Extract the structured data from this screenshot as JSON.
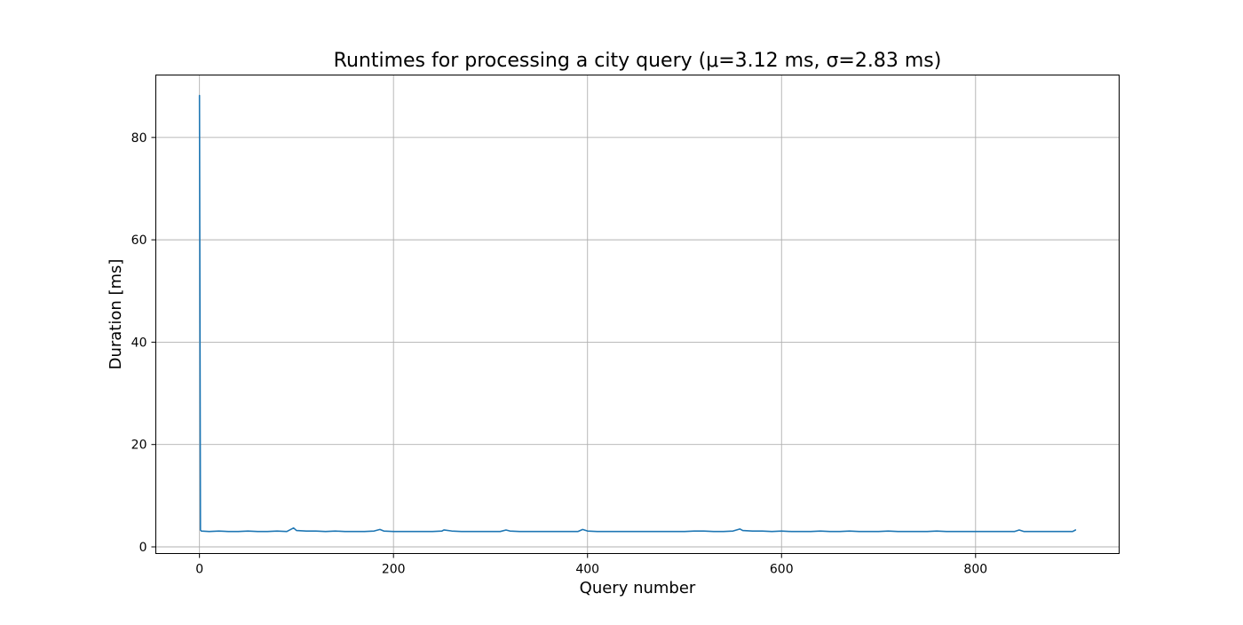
{
  "chart_data": {
    "type": "line",
    "title": "Runtimes for processing a city query (μ=3.12 ms, σ=2.83 ms)",
    "xlabel": "Query number",
    "ylabel": "Duration [ms]",
    "xlim": [
      -45,
      948
    ],
    "ylim": [
      -1.3,
      92.2
    ],
    "xticks": [
      0,
      200,
      400,
      600,
      800
    ],
    "xtick_labels": [
      "0",
      "200",
      "400",
      "600",
      "800"
    ],
    "yticks": [
      0,
      20,
      40,
      60,
      80
    ],
    "ytick_labels": [
      "0",
      "20",
      "40",
      "60",
      "80"
    ],
    "grid": true,
    "legend": "none",
    "line_color": "#1f77b4",
    "series": [
      {
        "x": [
          0,
          1,
          2,
          10,
          20,
          30,
          40,
          50,
          60,
          70,
          80,
          90,
          97,
          100,
          110,
          120,
          130,
          140,
          150,
          160,
          170,
          180,
          186,
          190,
          200,
          210,
          220,
          230,
          240,
          250,
          252,
          260,
          270,
          280,
          290,
          300,
          310,
          316,
          320,
          330,
          340,
          350,
          360,
          370,
          380,
          390,
          395,
          400,
          410,
          420,
          430,
          440,
          450,
          460,
          470,
          480,
          490,
          500,
          510,
          520,
          530,
          540,
          550,
          557,
          560,
          570,
          580,
          590,
          600,
          610,
          620,
          630,
          640,
          650,
          660,
          670,
          680,
          690,
          700,
          710,
          720,
          730,
          740,
          750,
          760,
          770,
          780,
          790,
          800,
          810,
          820,
          830,
          840,
          845,
          850,
          860,
          870,
          880,
          890,
          900,
          903
        ],
        "y": [
          88.2,
          3.3,
          3.1,
          3.0,
          3.1,
          3.0,
          3.0,
          3.1,
          3.0,
          3.0,
          3.1,
          3.0,
          3.7,
          3.2,
          3.1,
          3.1,
          3.0,
          3.1,
          3.0,
          3.0,
          3.0,
          3.1,
          3.4,
          3.1,
          3.0,
          3.0,
          3.0,
          3.0,
          3.0,
          3.1,
          3.3,
          3.1,
          3.0,
          3.0,
          3.0,
          3.0,
          3.0,
          3.3,
          3.1,
          3.0,
          3.0,
          3.0,
          3.0,
          3.0,
          3.0,
          3.0,
          3.4,
          3.1,
          3.0,
          3.0,
          3.0,
          3.0,
          3.0,
          3.0,
          3.0,
          3.0,
          3.0,
          3.0,
          3.1,
          3.1,
          3.0,
          3.0,
          3.1,
          3.5,
          3.2,
          3.1,
          3.1,
          3.0,
          3.1,
          3.0,
          3.0,
          3.0,
          3.1,
          3.0,
          3.0,
          3.1,
          3.0,
          3.0,
          3.0,
          3.1,
          3.0,
          3.0,
          3.0,
          3.0,
          3.1,
          3.0,
          3.0,
          3.0,
          3.0,
          3.0,
          3.0,
          3.0,
          3.0,
          3.3,
          3.0,
          3.0,
          3.0,
          3.0,
          3.0,
          3.0,
          3.3
        ]
      }
    ]
  }
}
